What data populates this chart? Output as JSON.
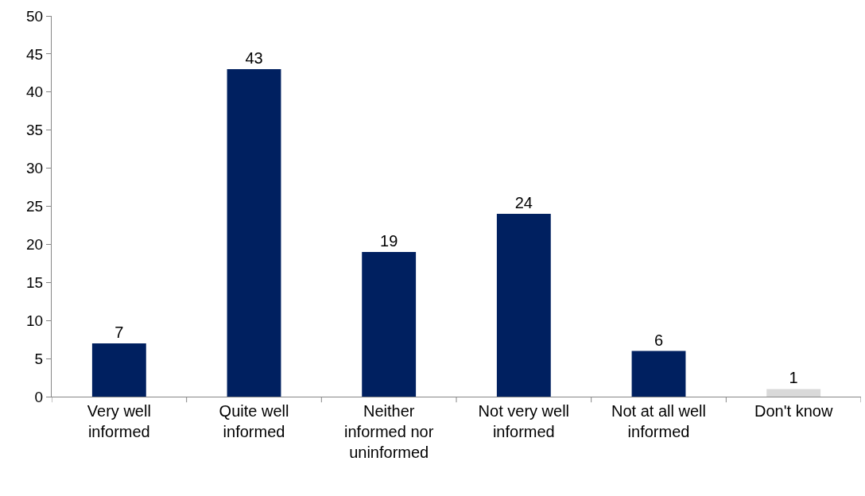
{
  "chart_data": {
    "type": "bar",
    "categories": [
      "Very well informed",
      "Quite well informed",
      "Neither informed nor uninformed",
      "Not very well informed",
      "Not at all well informed",
      "Don't know"
    ],
    "values": [
      7,
      43,
      19,
      24,
      6,
      1
    ],
    "colors": [
      "#002060",
      "#002060",
      "#002060",
      "#002060",
      "#002060",
      "#d9d9d9"
    ],
    "ylim": [
      0,
      50
    ],
    "yticks": [
      0,
      5,
      10,
      15,
      20,
      25,
      30,
      35,
      40,
      45,
      50
    ],
    "data_labels": true
  }
}
